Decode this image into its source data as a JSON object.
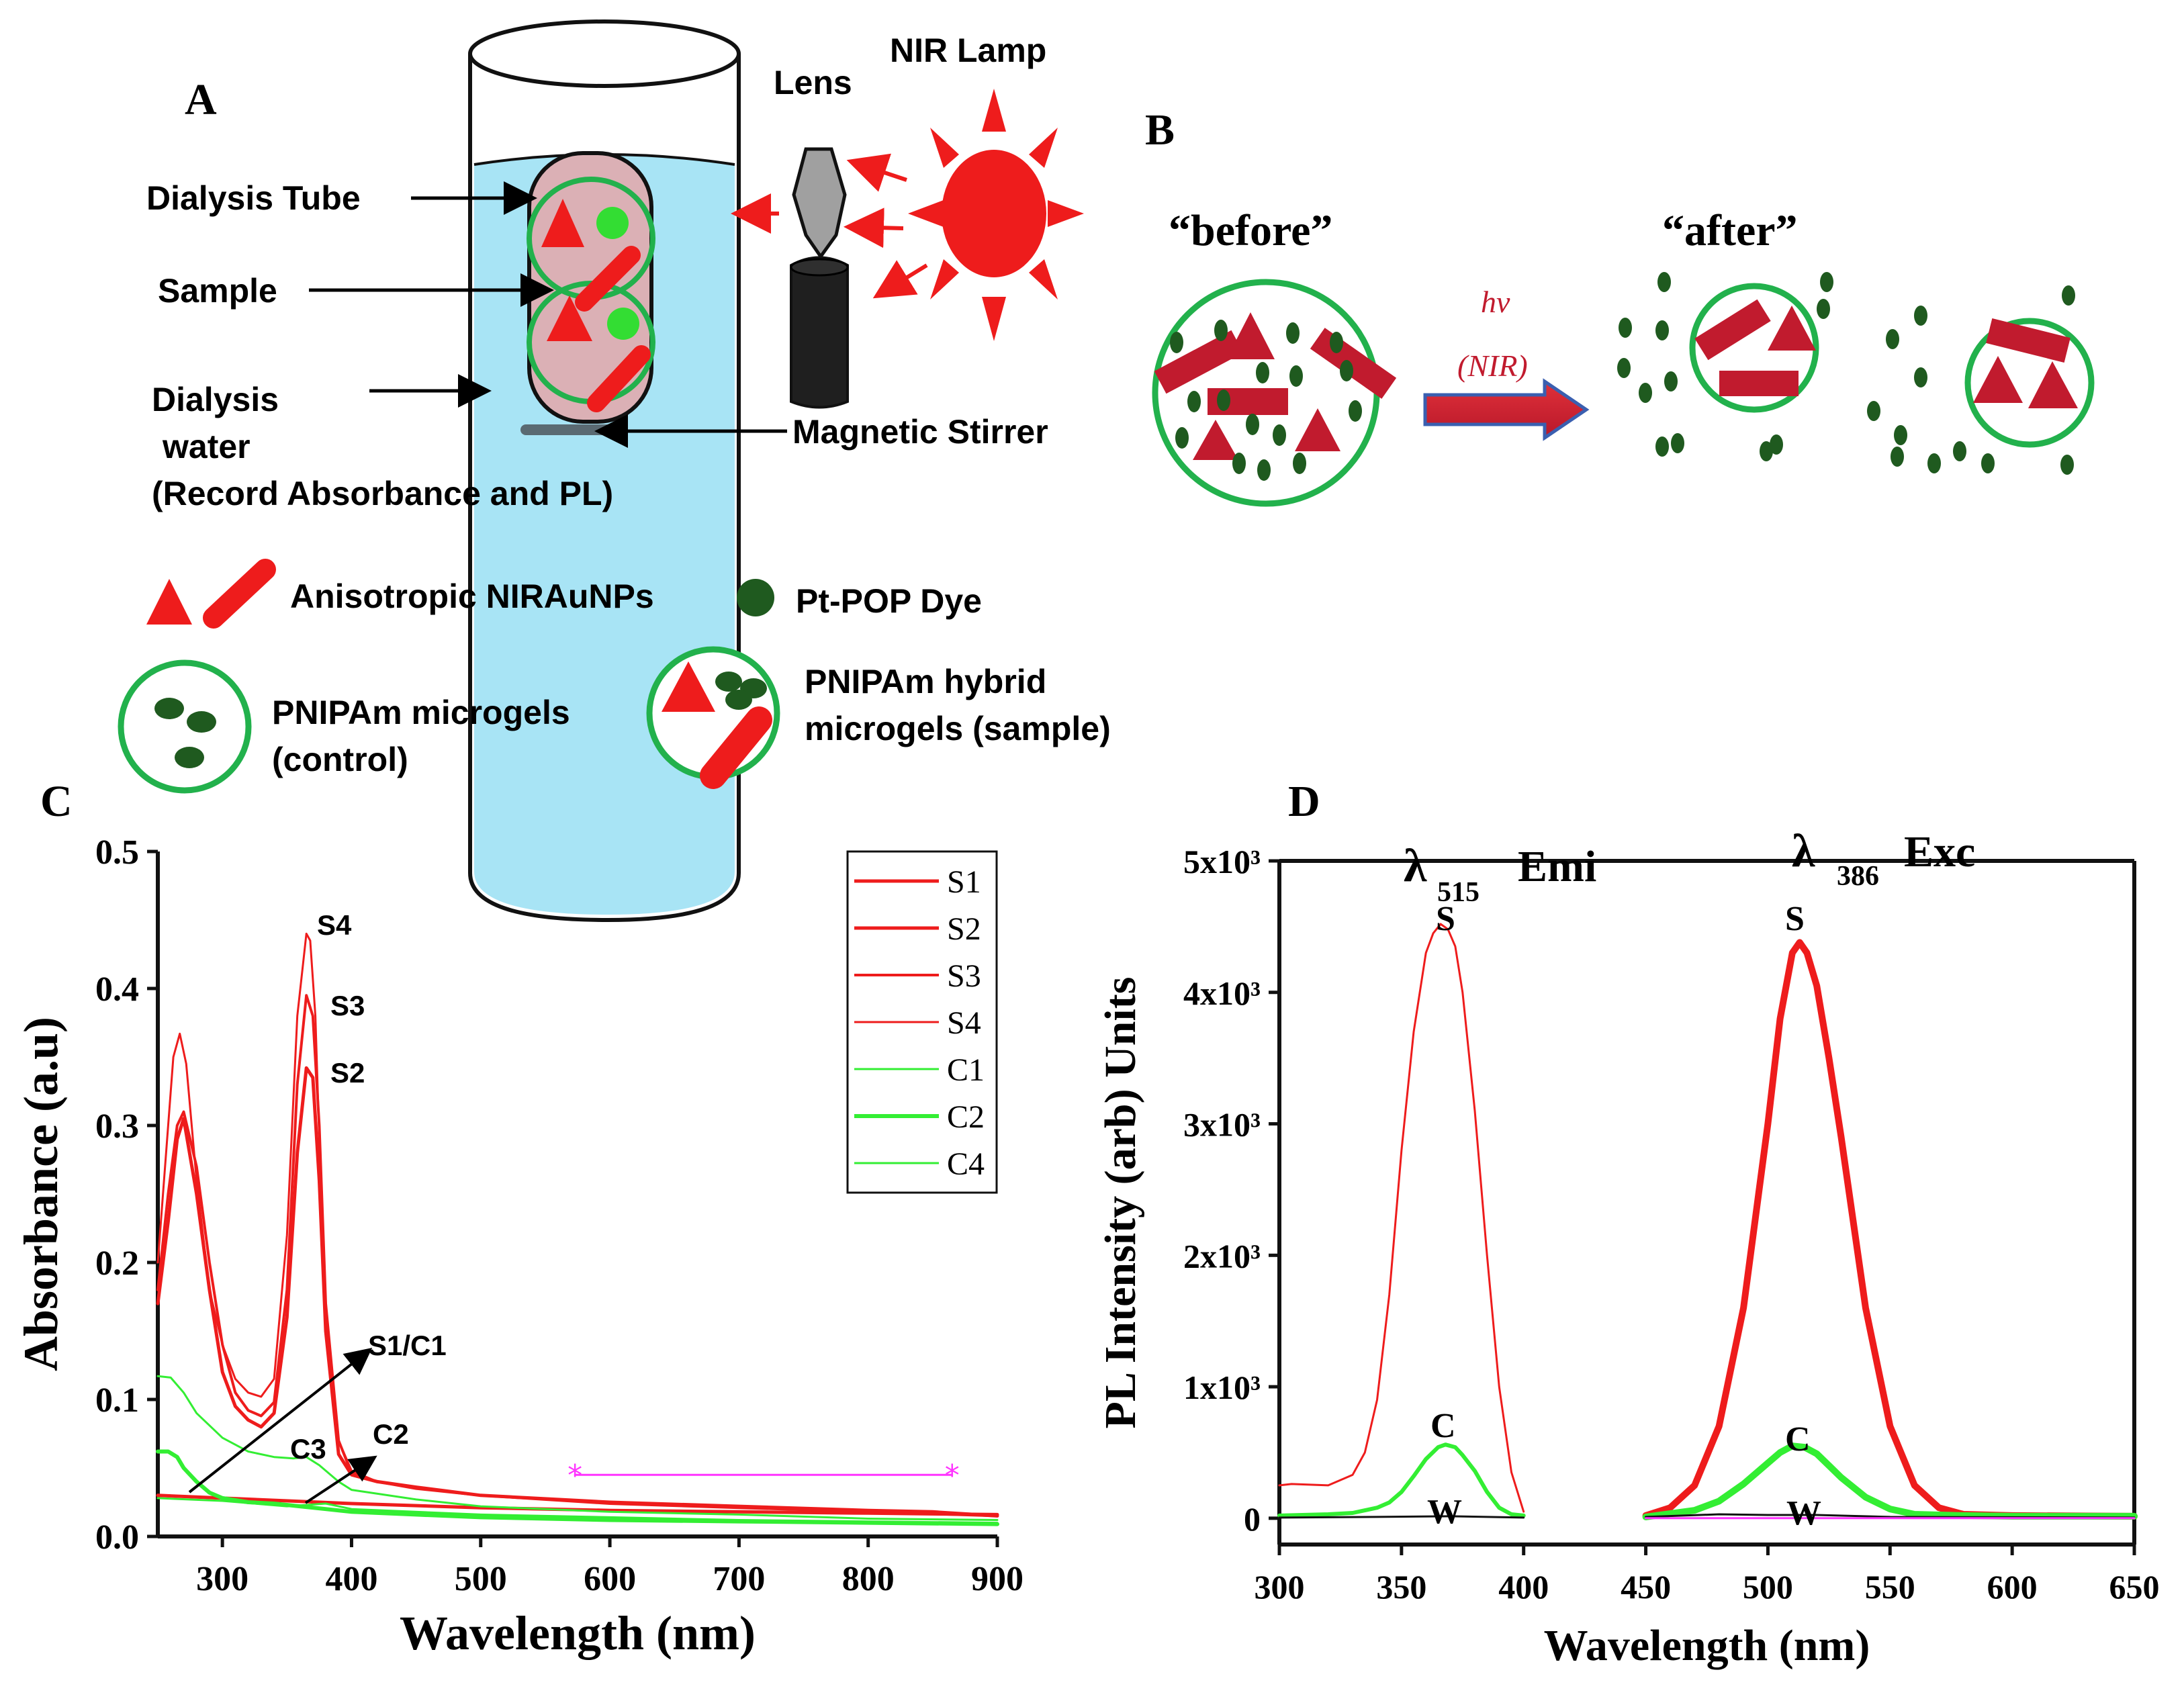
{
  "colors": {
    "red": "#ee1c1c",
    "dark_red": "#c11b2e",
    "green": "#22b14c",
    "bright_green": "#33ee33",
    "dark_green": "#1f5a1f",
    "water": "#a8e4f5",
    "magenta": "#ff33ff",
    "arrow_blue": "#3a5fb0"
  },
  "panel_a": {
    "letter": "A",
    "label_dialysis_tube": "Dialysis Tube",
    "label_sample": "Sample",
    "label_dialysis_water_1": "Dialysis",
    "label_dialysis_water_2": "water",
    "label_record": "(Record Absorbance and PL)",
    "label_lens": "Lens",
    "label_lamp": "NIR Lamp",
    "label_stirrer": "Magnetic Stirrer"
  },
  "panel_b": {
    "letter": "B",
    "before": "“before”",
    "after": "“after”",
    "hv": "hv",
    "nir": "(NIR)"
  },
  "legend": {
    "nirau": "Anisotropic NIRAuNPs",
    "dye": "Pt-POP Dye",
    "microgel_1": "PNIPAm microgels",
    "microgel_2": "(control)",
    "hybrid_1": "PNIPAm hybrid",
    "hybrid_2": "microgels (sample)"
  },
  "panel_c": {
    "letter": "C",
    "xlabel": "Wavelength (nm)",
    "ylabel": "Absorbance (a.u)",
    "annotations": [
      "S4",
      "S3",
      "S2",
      "S1/C1",
      "C3",
      "C2"
    ],
    "legend_entries": [
      "S1",
      "S2",
      "S3",
      "S4",
      "C1",
      "C2",
      "C4"
    ]
  },
  "panel_d": {
    "letter": "D",
    "xlabel": "Wavelength (nm)",
    "ylabel": "PL Intensity (arb) Units",
    "title_emi_lambda": "λ",
    "title_emi_sub": "515",
    "title_emi_text": "Emi",
    "title_exc_lambda": "λ",
    "title_exc_sub": "386",
    "title_exc_text": "Exc",
    "labels": [
      "S",
      "C",
      "W",
      "S",
      "C",
      "W"
    ]
  },
  "chart_data": [
    {
      "panel": "C",
      "type": "line",
      "title": "",
      "xlabel": "Wavelength (nm)",
      "ylabel": "Absorbance (a.u)",
      "xlim": [
        250,
        900
      ],
      "ylim": [
        0,
        0.5
      ],
      "x_ticks": [
        300,
        400,
        500,
        600,
        700,
        800,
        900
      ],
      "y_ticks": [
        0.0,
        0.1,
        0.2,
        0.3,
        0.4,
        0.5
      ],
      "x_tick_labels": [
        "300",
        "400",
        "500",
        "600",
        "700",
        "800",
        "900"
      ],
      "y_tick_labels": [
        "0.0",
        "0.1",
        "0.2",
        "0.3",
        "0.4",
        "0.5"
      ],
      "legend_position": "top-right",
      "series": [
        {
          "name": "S1",
          "color": "#ee1c1c",
          "width": 5,
          "x": [
            250,
            300,
            400,
            500,
            600,
            700,
            800,
            900
          ],
          "y": [
            0.03,
            0.028,
            0.024,
            0.021,
            0.019,
            0.018,
            0.017,
            0.016
          ]
        },
        {
          "name": "S2",
          "color": "#ee1c1c",
          "width": 5,
          "x": [
            250,
            258,
            265,
            270,
            280,
            290,
            300,
            310,
            320,
            330,
            340,
            350,
            358,
            365,
            370,
            375,
            380,
            390,
            400,
            420,
            450,
            500,
            600,
            700,
            800,
            850,
            900
          ],
          "y": [
            0.17,
            0.23,
            0.29,
            0.305,
            0.25,
            0.18,
            0.12,
            0.095,
            0.085,
            0.08,
            0.09,
            0.16,
            0.28,
            0.342,
            0.335,
            0.26,
            0.15,
            0.06,
            0.045,
            0.04,
            0.036,
            0.03,
            0.025,
            0.022,
            0.019,
            0.018,
            0.015
          ]
        },
        {
          "name": "S3",
          "color": "#ee1c1c",
          "width": 4,
          "x": [
            250,
            258,
            265,
            270,
            280,
            290,
            300,
            310,
            320,
            330,
            340,
            350,
            358,
            365,
            370,
            375,
            380,
            390,
            400,
            420,
            450,
            500,
            600,
            700,
            800,
            900
          ],
          "y": [
            0.18,
            0.25,
            0.3,
            0.31,
            0.27,
            0.2,
            0.14,
            0.105,
            0.092,
            0.088,
            0.098,
            0.18,
            0.33,
            0.395,
            0.38,
            0.3,
            0.17,
            0.07,
            0.046,
            0.04,
            0.035,
            0.03,
            0.024,
            0.021,
            0.018,
            0.015
          ]
        },
        {
          "name": "S4",
          "color": "#ee1c1c",
          "width": 3,
          "x": [
            250,
            258,
            262,
            267,
            272,
            280,
            290,
            300,
            310,
            320,
            330,
            340,
            350,
            358,
            365,
            368,
            372,
            376,
            380,
            390,
            400,
            420,
            450,
            500,
            600,
            700,
            800,
            900
          ],
          "y": [
            0.2,
            0.3,
            0.35,
            0.367,
            0.345,
            0.26,
            0.18,
            0.14,
            0.115,
            0.105,
            0.102,
            0.115,
            0.22,
            0.38,
            0.44,
            0.435,
            0.38,
            0.26,
            0.15,
            0.07,
            0.048,
            0.04,
            0.035,
            0.03,
            0.024,
            0.021,
            0.018,
            0.015
          ]
        },
        {
          "name": "C1",
          "color": "#33ee33",
          "width": 3,
          "x": [
            250,
            260,
            270,
            280,
            300,
            320,
            340,
            355,
            365,
            375,
            390,
            400,
            450,
            500,
            600,
            700,
            800,
            900
          ],
          "y": [
            0.117,
            0.116,
            0.105,
            0.09,
            0.072,
            0.062,
            0.058,
            0.057,
            0.058,
            0.052,
            0.04,
            0.034,
            0.027,
            0.022,
            0.018,
            0.016,
            0.013,
            0.012
          ]
        },
        {
          "name": "C2",
          "color": "#33ee33",
          "width": 6,
          "x": [
            250,
            258,
            265,
            270,
            280,
            290,
            300,
            320,
            340,
            360,
            380,
            400,
            450,
            500,
            600,
            700,
            800,
            900
          ],
          "y": [
            0.062,
            0.062,
            0.058,
            0.05,
            0.04,
            0.032,
            0.028,
            0.025,
            0.024,
            0.022,
            0.02,
            0.018,
            0.016,
            0.014,
            0.012,
            0.011,
            0.01,
            0.009
          ]
        },
        {
          "name": "C4",
          "color": "#33ee33",
          "width": 3,
          "x": [
            250,
            300,
            350,
            380,
            400,
            500,
            600,
            700,
            800,
            900
          ],
          "y": [
            0.028,
            0.026,
            0.022,
            0.024,
            0.02,
            0.016,
            0.014,
            0.012,
            0.011,
            0.01
          ]
        },
        {
          "name": "reference",
          "color": "#ff33ff",
          "width": 3,
          "x": [
            573,
            865
          ],
          "y": [
            0.045,
            0.045
          ]
        }
      ]
    },
    {
      "panel": "D",
      "type": "line",
      "title": "",
      "xlabel": "Wavelength (nm)",
      "ylabel": "PL Intensity (arb) Units",
      "xlim": [
        300,
        650
      ],
      "ylim": [
        -200,
        5000
      ],
      "x_ticks": [
        300,
        350,
        400,
        450,
        500,
        550,
        600,
        650
      ],
      "y_ticks": [
        0,
        1000,
        2000,
        3000,
        4000,
        5000
      ],
      "x_tick_labels": [
        "300",
        "350",
        "400",
        "450",
        "500",
        "550",
        "600",
        "650"
      ],
      "y_tick_labels": [
        "0",
        "1x10³",
        "2x10³",
        "3x10³",
        "4x10³",
        "5x10³"
      ],
      "series": [
        {
          "name": "S (λ515 Emi)",
          "color": "#ee1c1c",
          "width": 3,
          "x": [
            300,
            305,
            320,
            330,
            335,
            340,
            345,
            350,
            355,
            360,
            363,
            366,
            369,
            372,
            375,
            380,
            385,
            390,
            395,
            400
          ],
          "y": [
            250,
            260,
            250,
            330,
            500,
            900,
            1700,
            2800,
            3700,
            4300,
            4450,
            4520,
            4480,
            4350,
            4000,
            3100,
            2000,
            1000,
            350,
            50
          ]
        },
        {
          "name": "C (λ515 Emi)",
          "color": "#33ee33",
          "width": 6,
          "x": [
            300,
            320,
            330,
            340,
            345,
            350,
            355,
            360,
            365,
            368,
            372,
            375,
            380,
            385,
            390,
            395,
            400
          ],
          "y": [
            20,
            30,
            40,
            80,
            120,
            200,
            320,
            450,
            540,
            560,
            540,
            480,
            360,
            200,
            80,
            30,
            20
          ]
        },
        {
          "name": "W (λ515 Emi)",
          "color": "#111111",
          "width": 3,
          "x": [
            300,
            340,
            370,
            400
          ],
          "y": [
            5,
            10,
            15,
            5
          ]
        },
        {
          "name": "S (λ386 Exc)",
          "color": "#ee1c1c",
          "width": 10,
          "x": [
            450,
            460,
            470,
            480,
            490,
            500,
            505,
            510,
            513,
            516,
            520,
            525,
            530,
            540,
            550,
            560,
            570,
            580,
            600,
            650
          ],
          "y": [
            20,
            80,
            250,
            700,
            1600,
            3000,
            3800,
            4300,
            4380,
            4300,
            4050,
            3500,
            2900,
            1600,
            700,
            250,
            80,
            30,
            20,
            15
          ]
        },
        {
          "name": "C (λ386 Exc)",
          "color": "#33ee33",
          "width": 10,
          "x": [
            450,
            470,
            480,
            490,
            500,
            505,
            510,
            515,
            520,
            525,
            530,
            540,
            550,
            560,
            580,
            600,
            650
          ],
          "y": [
            10,
            60,
            130,
            260,
            420,
            500,
            550,
            540,
            490,
            400,
            310,
            160,
            70,
            30,
            20,
            15,
            15
          ]
        },
        {
          "name": "W (λ386 Exc)",
          "color": "#111111",
          "width": 3,
          "x": [
            450,
            480,
            500,
            520,
            550,
            650
          ],
          "y": [
            10,
            30,
            25,
            25,
            10,
            5
          ]
        },
        {
          "name": "baseline",
          "color": "#ff33ff",
          "width": 3,
          "x": [
            450,
            650
          ],
          "y": [
            0,
            0
          ]
        }
      ]
    }
  ]
}
